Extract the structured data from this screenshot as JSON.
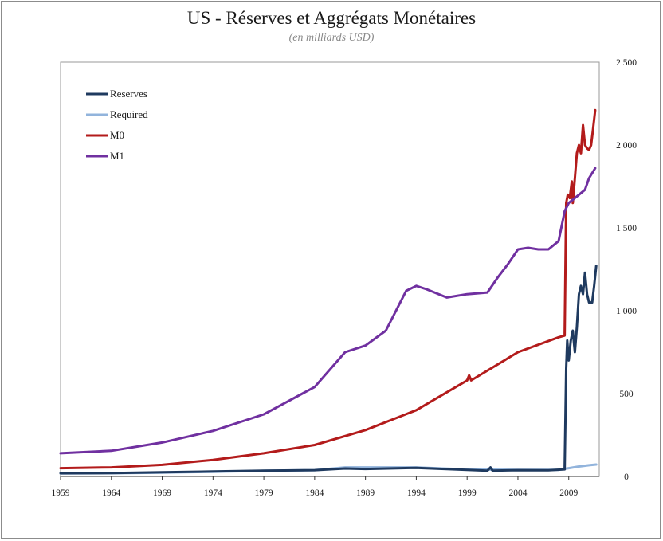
{
  "chart_data": {
    "type": "line",
    "title": "US - Réserves et Aggrégats Monétaires",
    "subtitle": "(en milliards USD)",
    "xlabel": "",
    "ylabel": "",
    "xlim": [
      1959,
      2012
    ],
    "ylim": [
      0,
      2500
    ],
    "x_ticks": [
      "1959",
      "1964",
      "1969",
      "1974",
      "1979",
      "1984",
      "1989",
      "1994",
      "1999",
      "2004",
      "2009"
    ],
    "y_ticks": [
      "0",
      "500",
      "1 000",
      "1 500",
      "2 000",
      "2 500"
    ],
    "y_axis_side": "right",
    "legend_position": "top-left",
    "series": [
      {
        "name": "Reserves",
        "color": "#1f3a5f",
        "points": [
          [
            1959,
            19
          ],
          [
            1964,
            20
          ],
          [
            1969,
            25
          ],
          [
            1974,
            30
          ],
          [
            1979,
            35
          ],
          [
            1984,
            38
          ],
          [
            1987,
            48
          ],
          [
            1989,
            45
          ],
          [
            1994,
            52
          ],
          [
            1999,
            40
          ],
          [
            2001,
            35
          ],
          [
            2001.3,
            55
          ],
          [
            2001.5,
            35
          ],
          [
            2004,
            38
          ],
          [
            2007,
            37
          ],
          [
            2008.6,
            43
          ],
          [
            2008.75,
            650
          ],
          [
            2008.85,
            820
          ],
          [
            2009.0,
            700
          ],
          [
            2009.2,
            820
          ],
          [
            2009.4,
            880
          ],
          [
            2009.6,
            750
          ],
          [
            2009.8,
            900
          ],
          [
            2010.0,
            1100
          ],
          [
            2010.2,
            1150
          ],
          [
            2010.4,
            1100
          ],
          [
            2010.6,
            1230
          ],
          [
            2010.8,
            1100
          ],
          [
            2011.0,
            1050
          ],
          [
            2011.3,
            1050
          ],
          [
            2011.5,
            1150
          ],
          [
            2011.7,
            1270
          ]
        ]
      },
      {
        "name": "Required",
        "color": "#92b4dc",
        "points": [
          [
            1959,
            18
          ],
          [
            1964,
            19
          ],
          [
            1969,
            23
          ],
          [
            1974,
            28
          ],
          [
            1979,
            34
          ],
          [
            1984,
            38
          ],
          [
            1987,
            55
          ],
          [
            1989,
            55
          ],
          [
            1994,
            55
          ],
          [
            1999,
            42
          ],
          [
            2004,
            40
          ],
          [
            2008,
            40
          ],
          [
            2009,
            50
          ],
          [
            2010,
            60
          ],
          [
            2011,
            68
          ],
          [
            2011.7,
            72
          ]
        ]
      },
      {
        "name": "M0",
        "color": "#b31b1b",
        "points": [
          [
            1959,
            50
          ],
          [
            1964,
            55
          ],
          [
            1969,
            70
          ],
          [
            1974,
            100
          ],
          [
            1979,
            140
          ],
          [
            1984,
            190
          ],
          [
            1989,
            280
          ],
          [
            1994,
            400
          ],
          [
            1999,
            580
          ],
          [
            1999.2,
            610
          ],
          [
            1999.4,
            580
          ],
          [
            2004,
            750
          ],
          [
            2008,
            840
          ],
          [
            2008.6,
            850
          ],
          [
            2008.75,
            1650
          ],
          [
            2008.9,
            1700
          ],
          [
            2009.1,
            1680
          ],
          [
            2009.3,
            1780
          ],
          [
            2009.4,
            1650
          ],
          [
            2009.6,
            1800
          ],
          [
            2009.8,
            1950
          ],
          [
            2010.0,
            2000
          ],
          [
            2010.2,
            1950
          ],
          [
            2010.4,
            2120
          ],
          [
            2010.6,
            2000
          ],
          [
            2010.8,
            1980
          ],
          [
            2011.0,
            1970
          ],
          [
            2011.2,
            2000
          ],
          [
            2011.4,
            2100
          ],
          [
            2011.6,
            2210
          ]
        ]
      },
      {
        "name": "M1",
        "color": "#7030a0",
        "points": [
          [
            1959,
            140
          ],
          [
            1964,
            155
          ],
          [
            1969,
            205
          ],
          [
            1974,
            275
          ],
          [
            1979,
            375
          ],
          [
            1984,
            540
          ],
          [
            1987,
            750
          ],
          [
            1989,
            790
          ],
          [
            1991,
            880
          ],
          [
            1993,
            1120
          ],
          [
            1994,
            1150
          ],
          [
            1995,
            1130
          ],
          [
            1997,
            1080
          ],
          [
            1999,
            1100
          ],
          [
            2001,
            1110
          ],
          [
            2002,
            1200
          ],
          [
            2003,
            1280
          ],
          [
            2004,
            1370
          ],
          [
            2005,
            1380
          ],
          [
            2006,
            1370
          ],
          [
            2007,
            1370
          ],
          [
            2008,
            1420
          ],
          [
            2008.6,
            1600
          ],
          [
            2009,
            1650
          ],
          [
            2010,
            1700
          ],
          [
            2010.6,
            1730
          ],
          [
            2011,
            1800
          ],
          [
            2011.6,
            1860
          ]
        ]
      }
    ]
  }
}
